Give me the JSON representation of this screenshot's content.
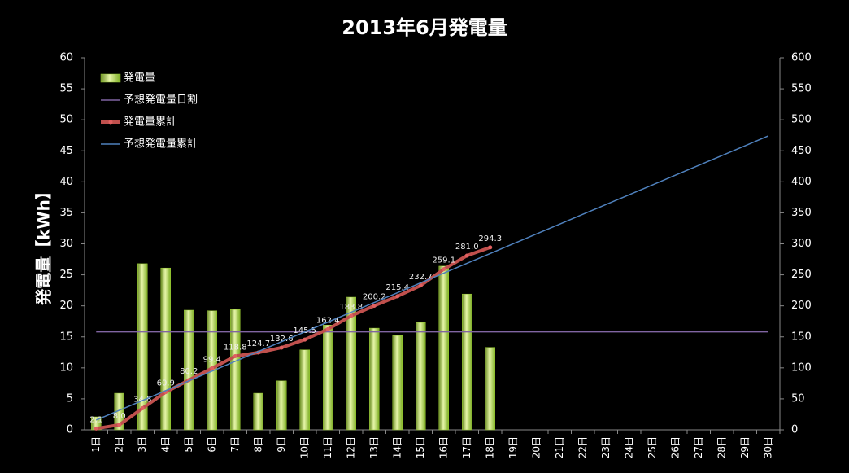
{
  "chart_data": {
    "type": "bar",
    "title": "2013年6月発電量",
    "y_label": "発電量【kWh】",
    "categories": [
      "1日",
      "2日",
      "3日",
      "4日",
      "5日",
      "6日",
      "7日",
      "8日",
      "9日",
      "10日",
      "11日",
      "12日",
      "13日",
      "14日",
      "15日",
      "16日",
      "17日",
      "18日",
      "19日",
      "20日",
      "21日",
      "22日",
      "23日",
      "24日",
      "25日",
      "26日",
      "27日",
      "28日",
      "29日",
      "30日"
    ],
    "series": [
      {
        "name": "発電量",
        "type": "bar",
        "color": "#9acd32",
        "values": [
          2.1,
          5.9,
          26.8,
          26.1,
          19.3,
          19.2,
          19.4,
          5.9,
          7.9,
          12.9,
          16.9,
          21.4,
          16.4,
          15.2,
          17.3,
          26.4,
          21.9,
          13.3,
          null,
          null,
          null,
          null,
          null,
          null,
          null,
          null,
          null,
          null,
          null,
          null
        ]
      },
      {
        "name": "予想発電量日割",
        "type": "line",
        "color": "#8064a2",
        "values": [
          15.8,
          15.8,
          15.8,
          15.8,
          15.8,
          15.8,
          15.8,
          15.8,
          15.8,
          15.8,
          15.8,
          15.8,
          15.8,
          15.8,
          15.8,
          15.8,
          15.8,
          15.8,
          15.8,
          15.8,
          15.8,
          15.8,
          15.8,
          15.8,
          15.8,
          15.8,
          15.8,
          15.8,
          15.8,
          15.8
        ]
      },
      {
        "name": "発電量累計",
        "type": "line",
        "axis": "y2",
        "color": "#c0504d",
        "markers": true,
        "values": [
          2.1,
          8.0,
          34.8,
          60.9,
          80.2,
          99.4,
          118.8,
          124.7,
          132.6,
          145.5,
          162.4,
          183.8,
          200.2,
          215.4,
          232.7,
          259.1,
          281.0,
          294.3,
          null,
          null,
          null,
          null,
          null,
          null,
          null,
          null,
          null,
          null,
          null,
          null
        ],
        "value_labels": [
          "2.1",
          "8.0",
          "34.8",
          "60.9",
          "80.2",
          "99.4",
          "118.8",
          "124.7",
          "132.6",
          "145.5",
          "162.4",
          "183.8",
          "200.2",
          "215.4",
          "232.7",
          "259.1",
          "281.0",
          "294.3",
          null,
          null,
          null,
          null,
          null,
          null,
          null,
          null,
          null,
          null,
          null,
          null
        ]
      },
      {
        "name": "予想発電量累計",
        "type": "line",
        "axis": "y2",
        "color": "#4f81bd",
        "values": [
          15.8,
          31.6,
          47.4,
          63.2,
          79,
          94.8,
          110.6,
          126.4,
          142.2,
          158,
          173.8,
          189.6,
          205.4,
          221.2,
          237,
          252.8,
          268.6,
          284.4,
          300.2,
          316,
          331.8,
          347.6,
          363.4,
          379.2,
          395,
          410.8,
          426.6,
          442.4,
          458.2,
          474
        ]
      }
    ],
    "ylim": [
      0,
      60
    ],
    "yticks": [
      0,
      5,
      10,
      15,
      20,
      25,
      30,
      35,
      40,
      45,
      50,
      55,
      60
    ],
    "y2lim": [
      0,
      600
    ],
    "y2ticks": [
      0,
      50,
      100,
      150,
      200,
      250,
      300,
      350,
      400,
      450,
      500,
      550,
      600
    ]
  }
}
